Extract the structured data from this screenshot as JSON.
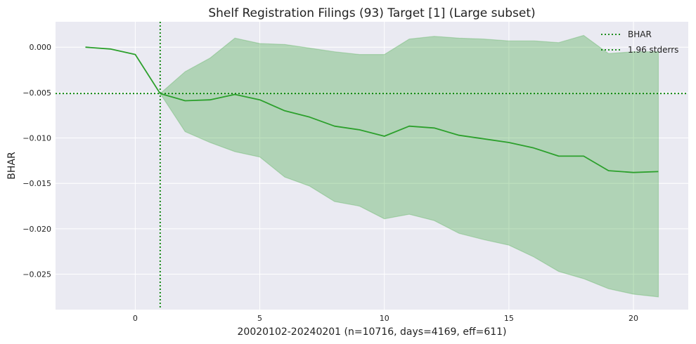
{
  "chart_data": {
    "type": "line",
    "title": "Shelf Registration Filings (93) Target [1] (Large subset)",
    "xlabel": "20020102-20240201 (n=10716, days=4169, eff=611)",
    "ylabel": "BHAR",
    "xlim": [
      -3.2,
      22.2
    ],
    "ylim": [
      -0.0289,
      0.0028
    ],
    "xticks": [
      0,
      5,
      10,
      15,
      20
    ],
    "yticks": [
      0.0,
      -0.005,
      -0.01,
      -0.015,
      -0.02,
      -0.025
    ],
    "ytick_labels": [
      "0.000",
      "−0.005",
      "−0.010",
      "−0.015",
      "−0.020",
      "−0.025"
    ],
    "grid": true,
    "legend_position": "top-right",
    "legend": [
      "BHAR",
      "1.96 stderrs"
    ],
    "vline_x": 1,
    "hline_y": -0.0051,
    "colors": {
      "line": "#2ca02c",
      "band": "#2ca02c",
      "background": "#eaeaf2",
      "grid": "#ffffff",
      "ref": "#008000"
    },
    "series": [
      {
        "name": "BHAR",
        "x": [
          -2,
          -1,
          0,
          1,
          2,
          3,
          4,
          5,
          6,
          7,
          8,
          9,
          10,
          11,
          12,
          13,
          14,
          15,
          16,
          17,
          18,
          19,
          20,
          21
        ],
        "values": [
          0.0,
          -0.0002,
          -0.0008,
          -0.0051,
          -0.0059,
          -0.0058,
          -0.0052,
          -0.0058,
          -0.007,
          -0.0077,
          -0.0087,
          -0.0091,
          -0.0098,
          -0.0087,
          -0.0089,
          -0.0097,
          -0.0101,
          -0.0105,
          -0.0111,
          -0.012,
          -0.012,
          -0.0136,
          -0.0138,
          -0.0137
        ]
      }
    ],
    "band": {
      "name": "1.96 stderrs",
      "x": [
        1,
        2,
        3,
        4,
        5,
        6,
        7,
        8,
        9,
        10,
        11,
        12,
        13,
        14,
        15,
        16,
        17,
        18,
        19,
        20,
        21
      ],
      "upper": [
        -0.0051,
        -0.0027,
        -0.0012,
        0.001,
        0.0004,
        0.0003,
        -0.0001,
        -0.0005,
        -0.0008,
        -0.0008,
        0.0009,
        0.0012,
        0.001,
        0.0009,
        0.0007,
        0.0007,
        0.0005,
        0.0013,
        -0.0007,
        -0.0005,
        -0.0005
      ],
      "lower": [
        -0.0051,
        -0.0093,
        -0.0105,
        -0.0115,
        -0.0121,
        -0.0143,
        -0.0153,
        -0.017,
        -0.0175,
        -0.0189,
        -0.0184,
        -0.0191,
        -0.0205,
        -0.0212,
        -0.0218,
        -0.0231,
        -0.0247,
        -0.0255,
        -0.0266,
        -0.0272,
        -0.0275
      ]
    }
  }
}
